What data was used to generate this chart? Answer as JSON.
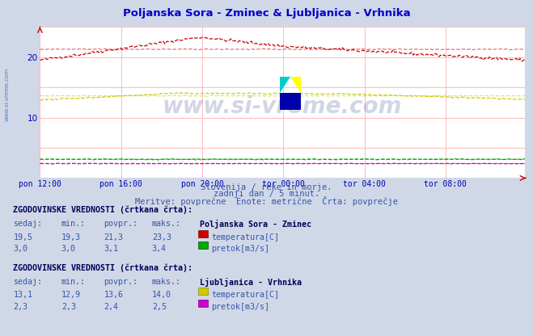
{
  "title": "Poljanska Sora - Zminec & Ljubljanica - Vrhnika",
  "title_color": "#0000cc",
  "bg_color": "#d0d8e8",
  "plot_bg_color": "#ffffff",
  "grid_color": "#ffb0b0",
  "tick_color": "#0000aa",
  "num_points": 288,
  "x_tick_labels": [
    "pon 12:00",
    "pon 16:00",
    "pon 20:00",
    "tor 00:00",
    "tor 04:00",
    "tor 08:00"
  ],
  "x_tick_positions": [
    0,
    48,
    96,
    144,
    192,
    240
  ],
  "ylim": [
    0,
    25
  ],
  "ytick_vals": [
    10,
    20
  ],
  "subtitle1": "Slovenija / reke in morje.",
  "subtitle2": "zadnji dan / 5 minut.",
  "subtitle3": "Meritve: povprečne  Enote: metrične  Črta: povprečje",
  "watermark": "www.si-vreme.com",
  "side_text": "www.si-vreme.com",
  "station1_name": "Poljanska Sora - Zminec",
  "station1_temp_color": "#cc0000",
  "station1_flow_color": "#00aa00",
  "station2_name": "Ljubljanica - Vrhnika",
  "station2_temp_color": "#cccc00",
  "station2_flow_color": "#cc00cc",
  "hist_section_title": "ZGODOVINSKE VREDNOSTI (črtkana črta):",
  "col_headers": [
    "sedaj:",
    "min.:",
    "povpr.:",
    "maks.:"
  ],
  "s1_temp_vals": [
    "19,5",
    "19,3",
    "21,3",
    "23,3"
  ],
  "s1_flow_vals": [
    "3,0",
    "3,0",
    "3,1",
    "3,4"
  ],
  "s2_temp_vals": [
    "13,1",
    "12,9",
    "13,6",
    "14,0"
  ],
  "s2_flow_vals": [
    "2,3",
    "2,3",
    "2,4",
    "2,5"
  ],
  "label_temp": "temperatura[C]",
  "label_flow": "pretok[m3/s]"
}
